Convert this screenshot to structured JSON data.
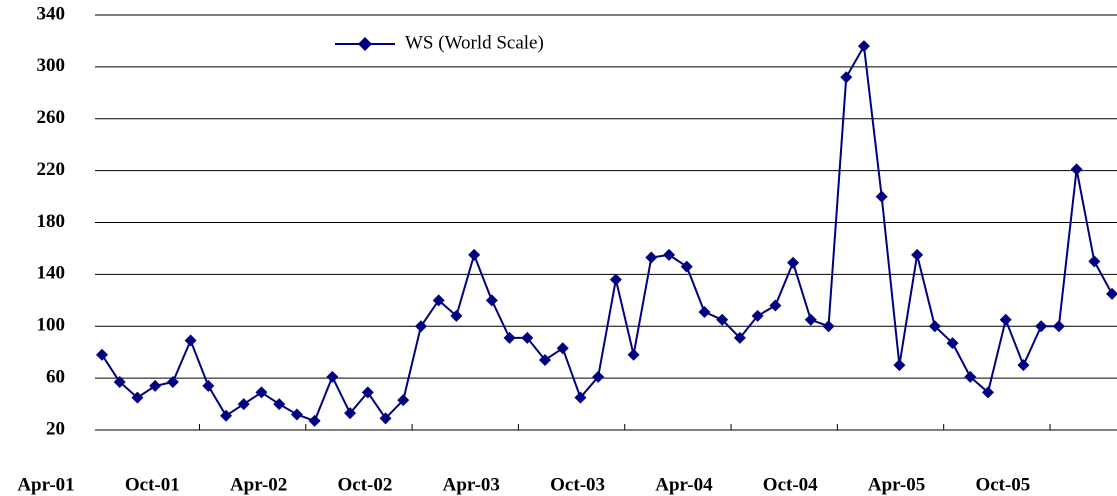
{
  "chart_data": {
    "type": "line",
    "categories": [
      "Apr-01",
      null,
      null,
      null,
      null,
      null,
      "Oct-01",
      null,
      null,
      null,
      null,
      null,
      "Apr-02",
      null,
      null,
      null,
      null,
      null,
      "Oct-02",
      null,
      null,
      null,
      null,
      null,
      "Apr-03",
      null,
      null,
      null,
      null,
      null,
      "Oct-03",
      null,
      null,
      null,
      null,
      null,
      "Apr-04",
      null,
      null,
      null,
      null,
      null,
      "Oct-04",
      null,
      null,
      null,
      null,
      null,
      "Apr-05",
      null,
      null,
      null,
      null,
      null,
      "Oct-05",
      null,
      null,
      null
    ],
    "series": [
      {
        "name": "WS (World Scale)",
        "color": "#000080",
        "values": [
          78,
          57,
          45,
          54,
          57,
          89,
          54,
          31,
          40,
          49,
          40,
          32,
          27,
          61,
          33,
          49,
          29,
          43,
          100,
          120,
          108,
          155,
          120,
          91,
          91,
          74,
          83,
          45,
          61,
          136,
          78,
          153,
          155,
          146,
          111,
          105,
          91,
          108,
          116,
          149,
          105,
          100,
          292,
          316,
          200,
          70,
          155,
          100,
          87,
          61,
          49,
          105,
          70,
          100,
          100,
          221,
          150,
          125
        ]
      }
    ],
    "ylim": [
      20,
      340
    ],
    "yticks": [
      20,
      60,
      100,
      140,
      180,
      220,
      260,
      300,
      340
    ],
    "grid": true
  }
}
